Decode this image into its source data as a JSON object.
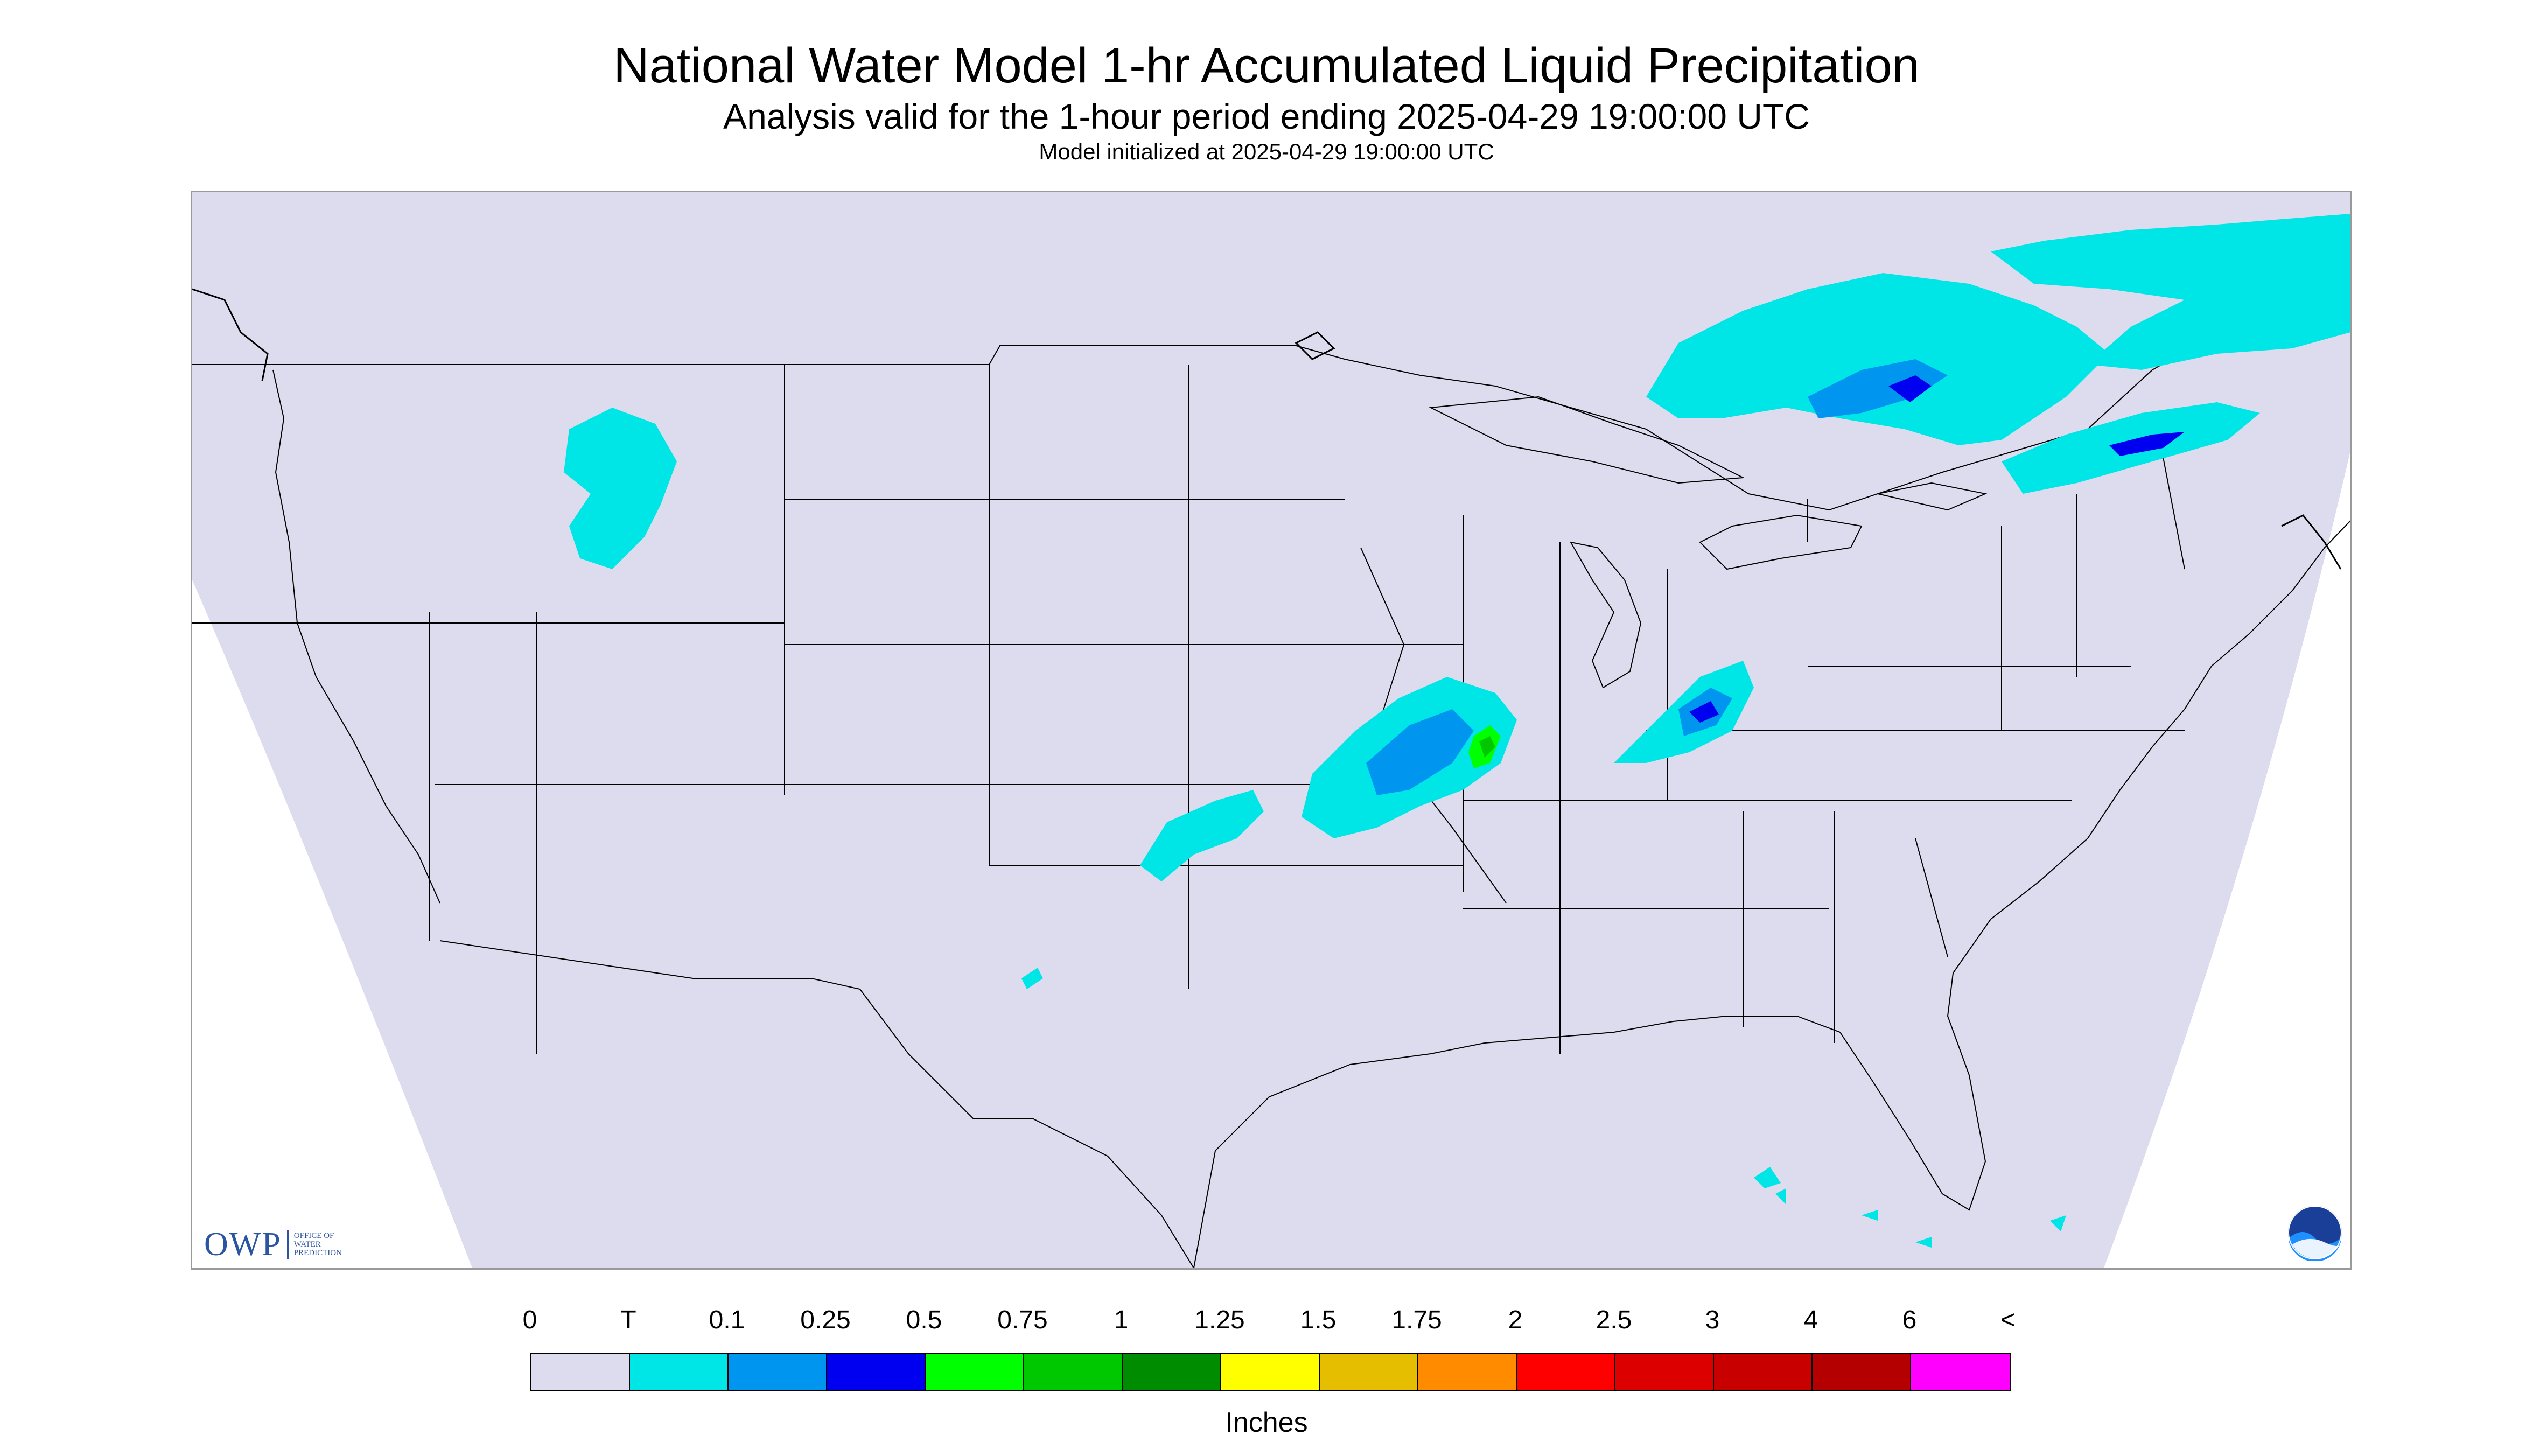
{
  "header": {
    "title": "National Water Model 1-hr Accumulated Liquid Precipitation",
    "subtitle": "Analysis valid for the 1-hour period ending 2025-04-29 19:00:00 UTC",
    "init_line": "Model initialized at 2025-04-29 19:00:00 UTC"
  },
  "map": {
    "region": "Continental United States",
    "background_color": "#dcdcee",
    "boundary_color": "#000000",
    "precip_colors": {
      "trace": "#00e6e6",
      "light": "#0096f0",
      "moderate": "#0000f0",
      "heavy": "#00ff00",
      "very_heavy": "#00c800"
    }
  },
  "logos": {
    "owp": {
      "main": "OWP",
      "sub": "OFFICE OF\nWATER\nPREDICTION"
    },
    "noaa": {
      "label": "NOAA"
    }
  },
  "legend": {
    "tick_labels": [
      "0",
      "T",
      "0.1",
      "0.25",
      "0.5",
      "0.75",
      "1",
      "1.25",
      "1.5",
      "1.75",
      "2",
      "2.5",
      "3",
      "4",
      "6",
      "<"
    ],
    "colors": [
      "#dcdcee",
      "#00e6e6",
      "#0096f0",
      "#0000f0",
      "#00ff00",
      "#00c800",
      "#008c00",
      "#ffff00",
      "#e6be00",
      "#ff8c00",
      "#ff0000",
      "#dc0000",
      "#c80000",
      "#b40000",
      "#ff00ff",
      "#9650c8"
    ],
    "units": "Inches"
  }
}
